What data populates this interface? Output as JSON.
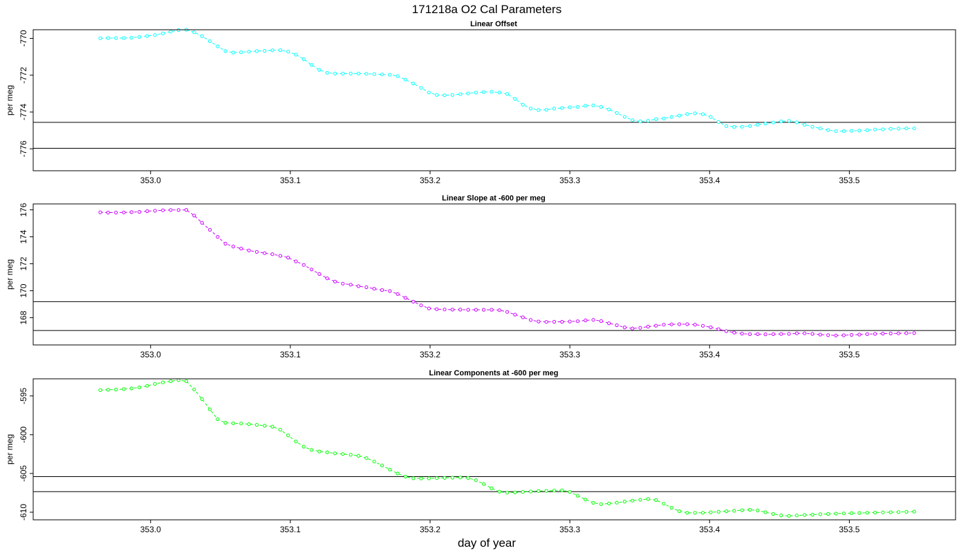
{
  "figure": {
    "title": "171218a   O2 Cal Parameters",
    "xlabel": "day of year"
  },
  "chart_data": [
    {
      "type": "line",
      "title": "Linear Offset",
      "xlabel": "day of year",
      "ylabel": "per meg",
      "xlim": [
        352.916,
        353.576
      ],
      "ylim": [
        -777.19,
        -769.53
      ],
      "xticks": [
        353.0,
        353.1,
        353.2,
        353.3,
        353.4,
        353.5
      ],
      "xtick_labels": [
        "353.0",
        "353.1",
        "353.2",
        "353.3",
        "353.4",
        "353.5"
      ],
      "yticks": [
        -770,
        -772,
        -774,
        -776
      ],
      "ytick_labels": [
        "-770",
        "-772",
        "-774",
        "-776"
      ],
      "hlines": [
        -774.56,
        -775.97
      ],
      "grid": false,
      "color": "#00ffff",
      "series": [
        {
          "marker": "open-circle",
          "line_style": "dashed",
          "x": [
            352.964,
            352.9696,
            352.9752,
            352.9808,
            352.9864,
            352.992,
            352.9976,
            353.0032,
            353.0088,
            353.0144,
            353.02,
            353.0256,
            353.0312,
            353.0368,
            353.0424,
            353.048,
            353.0536,
            353.0592,
            353.0648,
            353.0704,
            353.076,
            353.0816,
            353.0872,
            353.0928,
            353.0984,
            353.104,
            353.1096,
            353.1152,
            353.1208,
            353.1264,
            353.132,
            353.1376,
            353.1432,
            353.1488,
            353.1544,
            353.16,
            353.1656,
            353.1712,
            353.1768,
            353.1824,
            353.188,
            353.1936,
            353.1992,
            353.2048,
            353.2104,
            353.216,
            353.2216,
            353.2272,
            353.2328,
            353.2384,
            353.244,
            353.2496,
            353.2552,
            353.2608,
            353.2664,
            353.272,
            353.2776,
            353.2832,
            353.2888,
            353.2944,
            353.3,
            353.3056,
            353.3112,
            353.3168,
            353.3224,
            353.328,
            353.3336,
            353.3392,
            353.3448,
            353.3504,
            353.356,
            353.3616,
            353.3672,
            353.3728,
            353.3784,
            353.384,
            353.3896,
            353.3952,
            353.4008,
            353.4064,
            353.412,
            353.4176,
            353.4232,
            353.4288,
            353.4344,
            353.44,
            353.4456,
            353.4512,
            353.4568,
            353.4624,
            353.468,
            353.4736,
            353.4792,
            353.4848,
            353.4904,
            353.496,
            353.5016,
            353.5072,
            353.5128,
            353.5184,
            353.524,
            353.5296,
            353.5352,
            353.5408,
            353.5464
          ],
          "y": [
            -769.99,
            -769.98,
            -769.98,
            -769.98,
            -769.96,
            -769.92,
            -769.87,
            -769.82,
            -769.73,
            -769.63,
            -769.55,
            -769.53,
            -769.67,
            -769.88,
            -770.15,
            -770.43,
            -770.69,
            -770.77,
            -770.75,
            -770.72,
            -770.69,
            -770.68,
            -770.65,
            -770.64,
            -770.72,
            -770.88,
            -771.13,
            -771.44,
            -771.71,
            -771.87,
            -771.91,
            -771.91,
            -771.91,
            -771.91,
            -771.92,
            -771.94,
            -771.96,
            -771.98,
            -772.05,
            -772.24,
            -772.45,
            -772.69,
            -772.94,
            -773.07,
            -773.09,
            -773.07,
            -773.03,
            -772.99,
            -772.94,
            -772.92,
            -772.9,
            -772.94,
            -773.02,
            -773.29,
            -773.6,
            -773.81,
            -773.89,
            -773.88,
            -773.81,
            -773.78,
            -773.74,
            -773.72,
            -773.66,
            -773.64,
            -773.72,
            -773.86,
            -774.05,
            -774.26,
            -774.44,
            -774.51,
            -774.47,
            -774.39,
            -774.35,
            -774.27,
            -774.19,
            -774.11,
            -774.07,
            -774.12,
            -774.27,
            -774.54,
            -774.76,
            -774.81,
            -774.8,
            -774.76,
            -774.69,
            -774.63,
            -774.57,
            -774.51,
            -774.48,
            -774.56,
            -774.69,
            -774.8,
            -774.89,
            -774.98,
            -775.04,
            -775.04,
            -775.02,
            -775.01,
            -774.99,
            -774.95,
            -774.94,
            -774.91,
            -774.9,
            -774.89,
            -774.89
          ]
        }
      ]
    },
    {
      "type": "line",
      "title": "Linear Slope at -600 per meg",
      "xlabel": "day of year",
      "ylabel": "per meg",
      "xlim": [
        352.916,
        353.576
      ],
      "ylim": [
        165.98,
        176.44
      ],
      "xticks": [
        353.0,
        353.1,
        353.2,
        353.3,
        353.4,
        353.5
      ],
      "xtick_labels": [
        "353.0",
        "353.1",
        "353.2",
        "353.3",
        "353.4",
        "353.5"
      ],
      "yticks": [
        168,
        170,
        172,
        174,
        176
      ],
      "ytick_labels": [
        "168",
        "170",
        "172",
        "174",
        "176"
      ],
      "hlines": [
        169.19,
        167.05
      ],
      "grid": false,
      "color": "#cc00ff",
      "series": [
        {
          "marker": "open-circle",
          "line_style": "dashed",
          "x": [
            352.964,
            352.9696,
            352.9752,
            352.9808,
            352.9864,
            352.992,
            352.9976,
            353.0032,
            353.0088,
            353.0144,
            353.02,
            353.0256,
            353.0312,
            353.0368,
            353.0424,
            353.048,
            353.0536,
            353.0592,
            353.0648,
            353.0704,
            353.076,
            353.0816,
            353.0872,
            353.0928,
            353.0984,
            353.104,
            353.1096,
            353.1152,
            353.1208,
            353.1264,
            353.132,
            353.1376,
            353.1432,
            353.1488,
            353.1544,
            353.16,
            353.1656,
            353.1712,
            353.1768,
            353.1824,
            353.188,
            353.1936,
            353.1992,
            353.2048,
            353.2104,
            353.216,
            353.2216,
            353.2272,
            353.2328,
            353.2384,
            353.244,
            353.2496,
            353.2552,
            353.2608,
            353.2664,
            353.272,
            353.2776,
            353.2832,
            353.2888,
            353.2944,
            353.3,
            353.3056,
            353.3112,
            353.3168,
            353.3224,
            353.328,
            353.3336,
            353.3392,
            353.3448,
            353.3504,
            353.356,
            353.3616,
            353.3672,
            353.3728,
            353.3784,
            353.384,
            353.3896,
            353.3952,
            353.4008,
            353.4064,
            353.412,
            353.4176,
            353.4232,
            353.4288,
            353.4344,
            353.44,
            353.4456,
            353.4512,
            353.4568,
            353.4624,
            353.468,
            353.4736,
            353.4792,
            353.4848,
            353.4904,
            353.496,
            353.5016,
            353.5072,
            353.5128,
            353.5184,
            353.524,
            353.5296,
            353.5352,
            353.5408,
            353.5464
          ],
          "y": [
            175.82,
            175.8,
            175.8,
            175.81,
            175.83,
            175.85,
            175.9,
            175.93,
            175.97,
            175.99,
            175.99,
            176.0,
            175.58,
            175.04,
            174.52,
            174.0,
            173.49,
            173.28,
            173.13,
            172.99,
            172.88,
            172.79,
            172.71,
            172.59,
            172.46,
            172.18,
            171.92,
            171.58,
            171.24,
            170.92,
            170.68,
            170.53,
            170.45,
            170.34,
            170.26,
            170.15,
            170.05,
            169.98,
            169.76,
            169.47,
            169.19,
            168.92,
            168.69,
            168.63,
            168.61,
            168.6,
            168.6,
            168.59,
            168.59,
            168.59,
            168.59,
            168.56,
            168.43,
            168.23,
            168.03,
            167.83,
            167.72,
            167.69,
            167.7,
            167.7,
            167.72,
            167.74,
            167.8,
            167.84,
            167.75,
            167.59,
            167.44,
            167.28,
            167.2,
            167.25,
            167.34,
            167.41,
            167.48,
            167.51,
            167.52,
            167.52,
            167.49,
            167.4,
            167.29,
            167.15,
            167.0,
            166.9,
            166.82,
            166.78,
            166.78,
            166.77,
            166.78,
            166.79,
            166.8,
            166.84,
            166.84,
            166.8,
            166.75,
            166.71,
            166.68,
            166.7,
            166.73,
            166.75,
            166.78,
            166.8,
            166.82,
            166.83,
            166.84,
            166.85,
            166.86
          ]
        }
      ]
    },
    {
      "type": "line",
      "title": "Linear Components at -600 per meg",
      "xlabel": "day of year",
      "ylabel": "per meg",
      "xlim": [
        352.916,
        353.576
      ],
      "ylim": [
        -610.98,
        -592.79
      ],
      "xticks": [
        353.0,
        353.1,
        353.2,
        353.3,
        353.4,
        353.5
      ],
      "xtick_labels": [
        "353.0",
        "353.1",
        "353.2",
        "353.3",
        "353.4",
        "353.5"
      ],
      "yticks": [
        -595,
        -600,
        -605,
        -610
      ],
      "ytick_labels": [
        "-595",
        "-600",
        "-605",
        "-610"
      ],
      "hlines": [
        -605.41,
        -607.35
      ],
      "grid": false,
      "color": "#00ff00",
      "series": [
        {
          "marker": "open-circle",
          "line_style": "dashed",
          "x": [
            352.964,
            352.9696,
            352.9752,
            352.9808,
            352.9864,
            352.992,
            352.9976,
            353.0032,
            353.0088,
            353.0144,
            353.02,
            353.0256,
            353.0312,
            353.0368,
            353.0424,
            353.048,
            353.0536,
            353.0592,
            353.0648,
            353.0704,
            353.076,
            353.0816,
            353.0872,
            353.0928,
            353.0984,
            353.104,
            353.1096,
            353.1152,
            353.1208,
            353.1264,
            353.132,
            353.1376,
            353.1432,
            353.1488,
            353.1544,
            353.16,
            353.1656,
            353.1712,
            353.1768,
            353.1824,
            353.188,
            353.1936,
            353.1992,
            353.2048,
            353.2104,
            353.216,
            353.2216,
            353.2272,
            353.2328,
            353.2384,
            353.244,
            353.2496,
            353.2552,
            353.2608,
            353.2664,
            353.272,
            353.2776,
            353.2832,
            353.2888,
            353.2944,
            353.3,
            353.3056,
            353.3112,
            353.3168,
            353.3224,
            353.328,
            353.3336,
            353.3392,
            353.3448,
            353.3504,
            353.356,
            353.3616,
            353.3672,
            353.3728,
            353.3784,
            353.384,
            353.3896,
            353.3952,
            353.4008,
            353.4064,
            353.412,
            353.4176,
            353.4232,
            353.4288,
            353.4344,
            353.44,
            353.4456,
            353.4512,
            353.4568,
            353.4624,
            353.468,
            353.4736,
            353.4792,
            353.4848,
            353.4904,
            353.496,
            353.5016,
            353.5072,
            353.5128,
            353.5184,
            353.524,
            353.5296,
            353.5352,
            353.5408,
            353.5464
          ],
          "y": [
            -594.25,
            -594.2,
            -594.17,
            -594.12,
            -594.03,
            -593.9,
            -593.7,
            -593.45,
            -593.25,
            -593.1,
            -592.96,
            -593.1,
            -594.16,
            -595.41,
            -596.73,
            -598.01,
            -598.46,
            -598.52,
            -598.56,
            -598.64,
            -598.73,
            -598.84,
            -598.95,
            -599.36,
            -600.09,
            -600.88,
            -601.54,
            -601.96,
            -602.16,
            -602.28,
            -602.4,
            -602.49,
            -602.59,
            -602.72,
            -603.02,
            -603.46,
            -603.97,
            -604.5,
            -605.01,
            -605.41,
            -605.62,
            -605.65,
            -605.63,
            -605.6,
            -605.57,
            -605.54,
            -605.51,
            -605.58,
            -605.87,
            -606.36,
            -606.91,
            -607.35,
            -607.48,
            -607.45,
            -607.38,
            -607.32,
            -607.26,
            -607.24,
            -607.21,
            -607.18,
            -607.38,
            -607.87,
            -608.37,
            -608.79,
            -608.96,
            -608.88,
            -608.77,
            -608.63,
            -608.5,
            -608.39,
            -608.3,
            -608.43,
            -608.9,
            -609.42,
            -609.87,
            -610.08,
            -610.08,
            -610.07,
            -610.01,
            -609.94,
            -609.87,
            -609.81,
            -609.74,
            -609.69,
            -609.78,
            -610.0,
            -610.22,
            -610.41,
            -610.47,
            -610.42,
            -610.36,
            -610.31,
            -610.26,
            -610.22,
            -610.18,
            -610.15,
            -610.12,
            -610.1,
            -610.07,
            -610.04,
            -610.02,
            -610.0,
            -609.98,
            -609.95,
            -609.92
          ]
        }
      ]
    }
  ]
}
